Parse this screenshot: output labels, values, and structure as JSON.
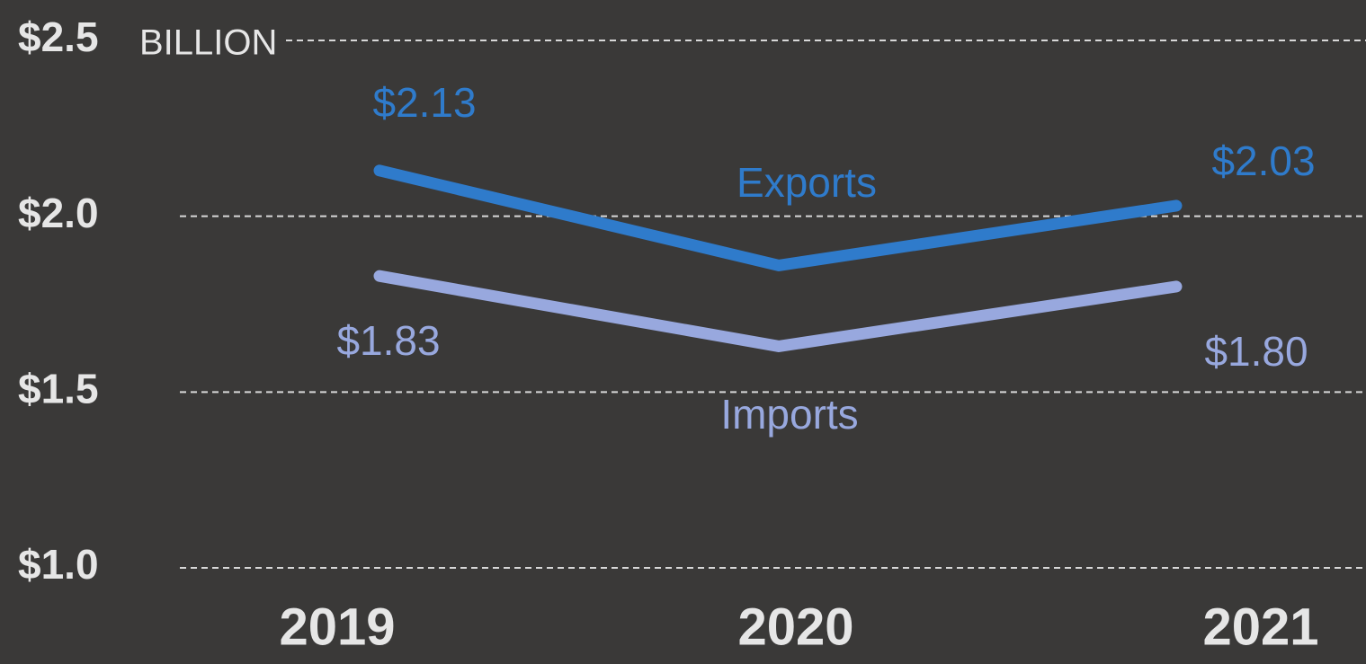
{
  "chart_data": {
    "type": "line",
    "y_unit": "BILLION",
    "categories": [
      "2019",
      "2020",
      "2021"
    ],
    "series": [
      {
        "name": "Exports",
        "color": "#2f7bcb",
        "values": [
          2.13,
          1.86,
          2.03
        ],
        "value_labels": [
          "$2.13",
          null,
          "$2.03"
        ]
      },
      {
        "name": "Imports",
        "color": "#98a8de",
        "values": [
          1.83,
          1.63,
          1.8
        ],
        "value_labels": [
          "$1.83",
          null,
          "$1.80"
        ]
      }
    ],
    "ylim": [
      1.0,
      2.5
    ],
    "yticks": [
      {
        "value": 1.0,
        "label": "$1.0"
      },
      {
        "value": 1.5,
        "label": "$1.5"
      },
      {
        "value": 2.0,
        "label": "$2.0"
      },
      {
        "value": 2.5,
        "label": "$2.5"
      }
    ],
    "grid": true
  }
}
